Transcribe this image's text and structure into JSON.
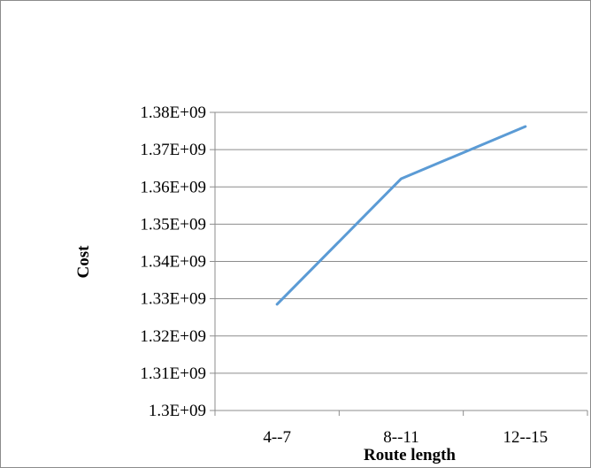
{
  "chart_data": {
    "type": "line",
    "title": "",
    "xlabel": "Route length",
    "ylabel": "Cost",
    "categories": [
      "4--7",
      "8--11",
      "12--15"
    ],
    "series": [
      {
        "values": [
          1328500000.0,
          1362200000.0,
          1376200000.0
        ],
        "color": "#5b9bd5"
      }
    ],
    "ylim": [
      1300000000.0,
      1380000000.0
    ],
    "yticks": [
      1300000000.0,
      1310000000.0,
      1320000000.0,
      1330000000.0,
      1340000000.0,
      1350000000.0,
      1360000000.0,
      1370000000.0,
      1380000000.0
    ],
    "ytick_labels": [
      "1.3E+09",
      "1.31E+09",
      "1.32E+09",
      "1.33E+09",
      "1.34E+09",
      "1.35E+09",
      "1.36E+09",
      "1.37E+09",
      "1.38E+09"
    ],
    "grid": "horizontal",
    "legend": "none"
  }
}
